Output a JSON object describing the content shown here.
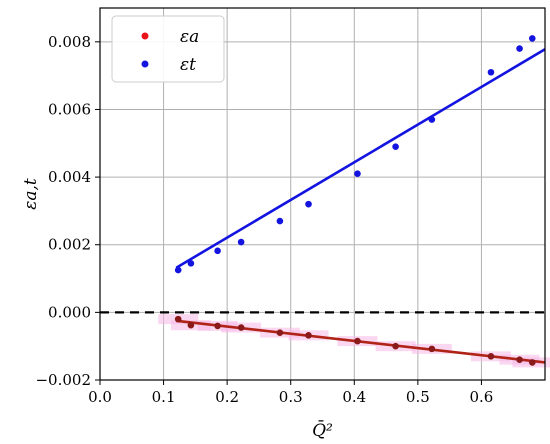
{
  "chart_data": {
    "type": "scatter",
    "xlabel": "Q̄²",
    "ylabel": "εa,t",
    "xlim": [
      0.0,
      0.7
    ],
    "ylim": [
      -0.002,
      0.009
    ],
    "x_ticks": [
      "0.0",
      "0.1",
      "0.2",
      "0.3",
      "0.4",
      "0.5",
      "0.6"
    ],
    "y_ticks": [
      "−0.002",
      "0.000",
      "0.002",
      "0.004",
      "0.006",
      "0.008"
    ],
    "x_tick_values": [
      0.0,
      0.1,
      0.2,
      0.3,
      0.4,
      0.5,
      0.6
    ],
    "y_tick_values": [
      -0.002,
      0.0,
      0.002,
      0.004,
      0.006,
      0.008
    ],
    "grid": true,
    "legend_position": "top-left",
    "reference_line": {
      "y": 0.0,
      "style": "dashed",
      "color": "#000000"
    },
    "series": [
      {
        "name": "εa",
        "color": "#e8141a",
        "marker_color": "#8b1a1a",
        "x": [
          0.123,
          0.143,
          0.185,
          0.222,
          0.283,
          0.328,
          0.405,
          0.465,
          0.522,
          0.615,
          0.66,
          0.68
        ],
        "y": [
          -0.0002,
          -0.00038,
          -0.0004,
          -0.00045,
          -0.0006,
          -0.00068,
          -0.00085,
          -0.001,
          -0.00108,
          -0.0013,
          -0.0014,
          -0.00148
        ],
        "fit": {
          "x": [
            0.12,
            0.7
          ],
          "y": [
            -0.00025,
            -0.00148
          ],
          "color": "#b02418"
        },
        "band_color": "#f7b8e6"
      },
      {
        "name": "εt",
        "color": "#1414e0",
        "marker_color": "#1414e0",
        "x": [
          0.123,
          0.143,
          0.185,
          0.222,
          0.283,
          0.328,
          0.405,
          0.465,
          0.522,
          0.615,
          0.66,
          0.68
        ],
        "y": [
          0.00125,
          0.00145,
          0.00182,
          0.00208,
          0.0027,
          0.0032,
          0.0041,
          0.0049,
          0.0057,
          0.0071,
          0.0078,
          0.0081
        ],
        "fit": {
          "x": [
            0.12,
            0.7
          ],
          "y": [
            0.00132,
            0.00778
          ],
          "color": "#1414e0"
        }
      }
    ]
  }
}
